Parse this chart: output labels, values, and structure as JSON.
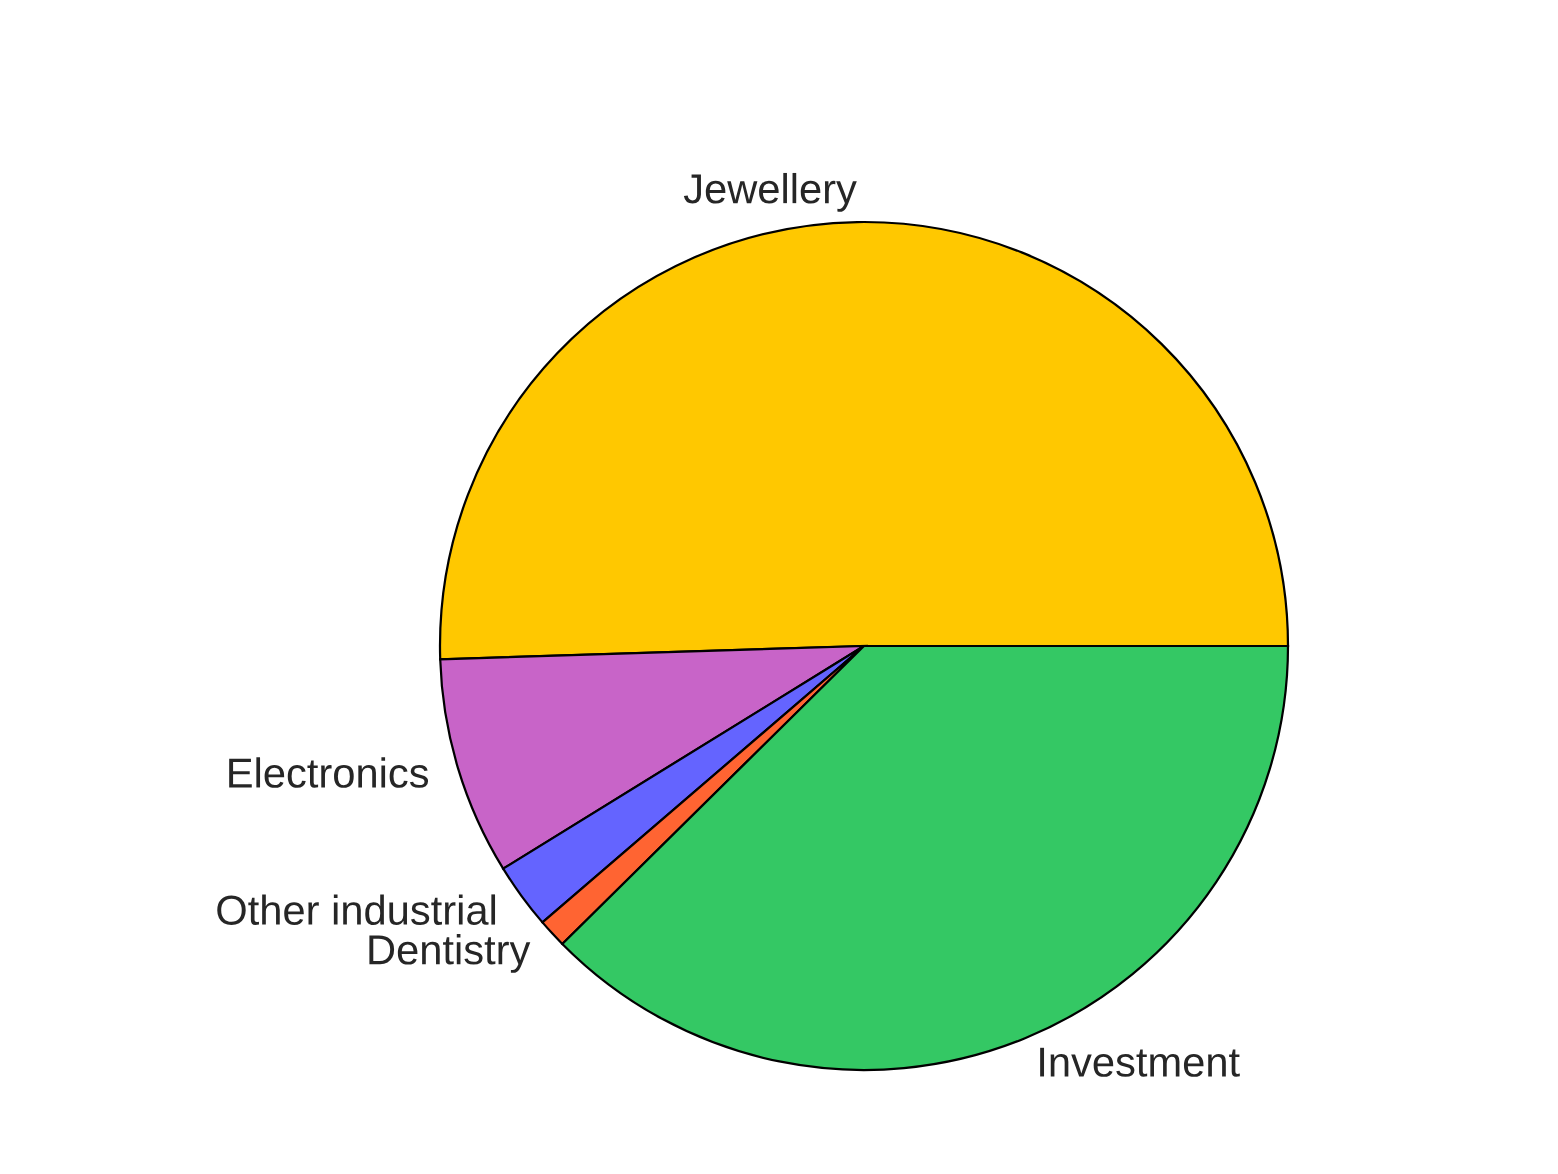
{
  "chart_data": {
    "type": "pie",
    "categories": [
      "Jewellery",
      "Electronics",
      "Other industrial",
      "Dentistry",
      "Investment"
    ],
    "values": [
      50.5,
      8.3,
      2.5,
      1.1,
      37.6
    ],
    "colors": [
      "#ffc800",
      "#c864c8",
      "#6464ff",
      "#ff6432",
      "#34c864"
    ],
    "legend": false
  }
}
